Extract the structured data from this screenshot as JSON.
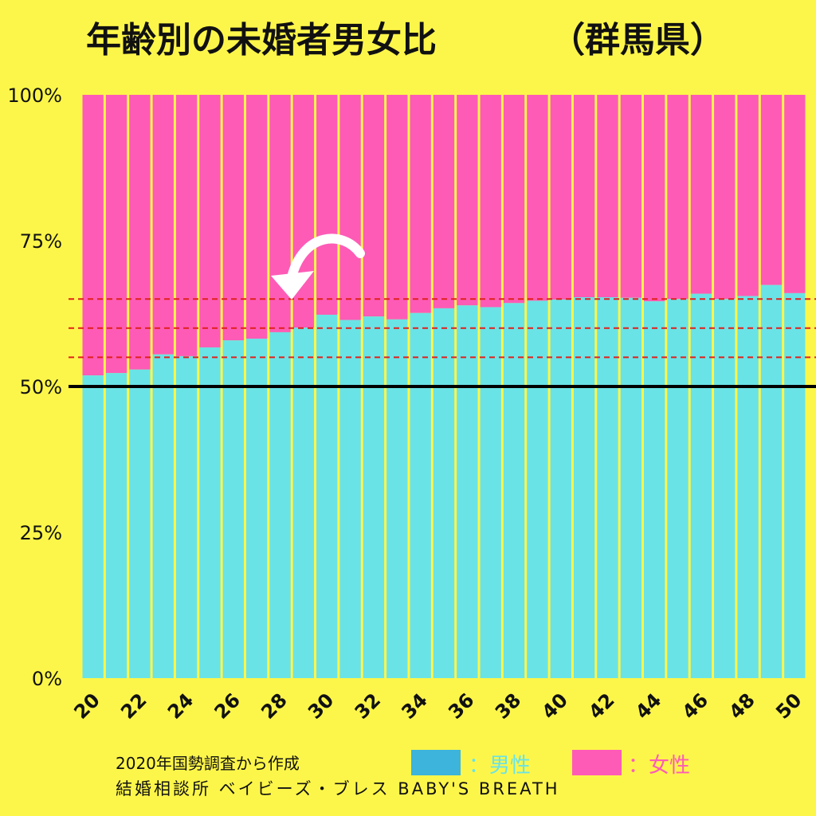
{
  "title": "年齢別の未婚者男女比",
  "region": "（群馬県）",
  "source": "2020年国勢調査から作成",
  "credit": "結婚相談所 ベイビーズ・ブレス BABY'S BREATH",
  "colors": {
    "background": "#fdf64a",
    "male": "#6ae3e6",
    "female": "#fe5bb6",
    "legend_male": "#3cb4dc",
    "legend_female": "#fe5bb6",
    "separator": "#fdf64a",
    "reference_line": "#000000",
    "dashed_line": "#e0201c"
  },
  "legend": {
    "male_label": "：男性",
    "female_label": "：女性"
  },
  "chart_data": {
    "type": "bar",
    "stacked": true,
    "x_tick_labels": [
      "20",
      "22",
      "24",
      "26",
      "28",
      "30",
      "32",
      "34",
      "36",
      "38",
      "40",
      "42",
      "44",
      "46",
      "48",
      "50"
    ],
    "y_tick_labels": [
      "0%",
      "25%",
      "50%",
      "75%",
      "100%"
    ],
    "ylim": [
      0,
      100
    ],
    "categories": [
      20,
      21,
      22,
      23,
      24,
      25,
      26,
      27,
      28,
      29,
      30,
      31,
      32,
      33,
      34,
      35,
      36,
      37,
      38,
      39,
      40,
      41,
      42,
      43,
      44,
      45,
      46,
      47,
      48,
      49,
      50
    ],
    "series": [
      {
        "name": "男性",
        "values": [
          51.9,
          52.3,
          52.9,
          55.5,
          55.2,
          56.7,
          57.9,
          58.2,
          59.3,
          60.1,
          62.3,
          61.4,
          62.0,
          61.5,
          62.6,
          63.4,
          63.9,
          63.6,
          64.3,
          64.7,
          64.9,
          65.3,
          65.3,
          65.2,
          64.6,
          65.0,
          65.9,
          65.0,
          65.5,
          67.4,
          66.0
        ]
      },
      {
        "name": "女性",
        "values": [
          48.1,
          47.7,
          47.1,
          44.5,
          44.8,
          43.3,
          42.1,
          41.8,
          40.7,
          39.9,
          37.7,
          38.6,
          38.0,
          38.5,
          37.4,
          36.6,
          36.1,
          36.4,
          35.7,
          35.3,
          35.1,
          34.7,
          34.7,
          34.8,
          35.4,
          35.0,
          34.1,
          35.0,
          34.5,
          32.6,
          34.0
        ]
      }
    ],
    "reference_line": 50,
    "dashed_reference_lines": [
      55,
      60,
      65
    ],
    "annotation": "arrow pointing to age 28"
  }
}
